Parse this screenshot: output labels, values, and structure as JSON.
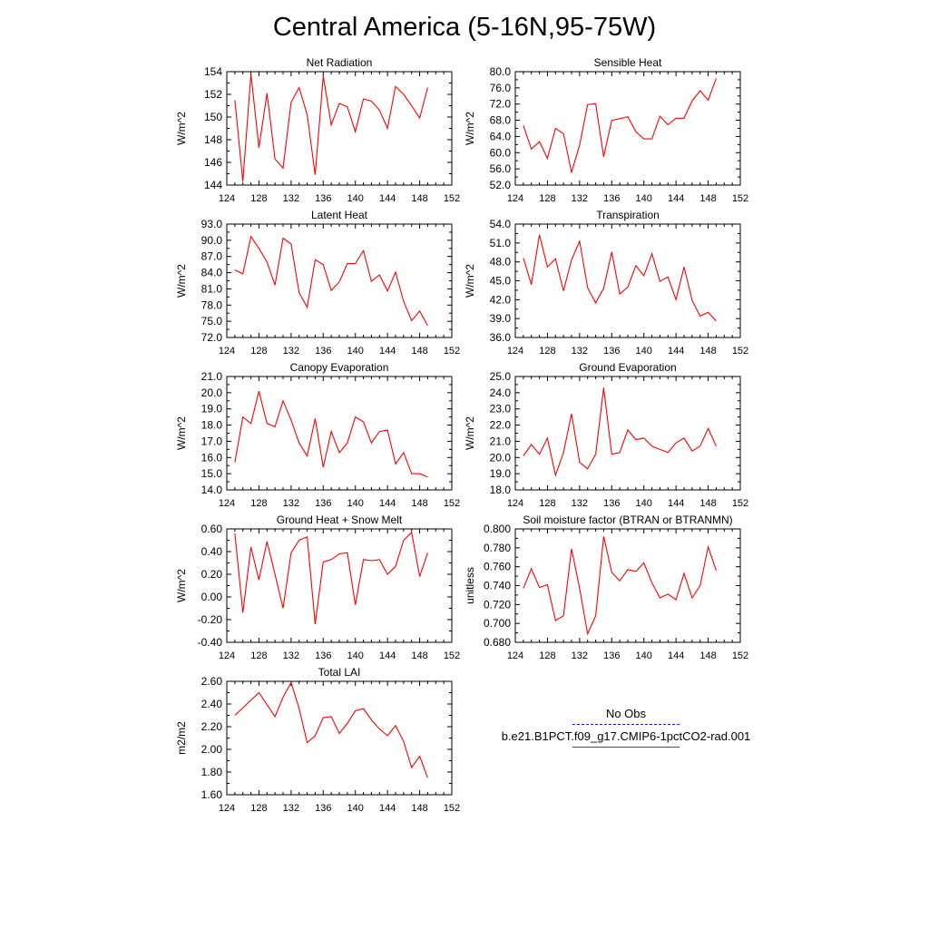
{
  "title": "Central America (5-16N,95-75W)",
  "legend": {
    "obs_label": "No Obs",
    "model_label": "b.e21.B1PCT.f09_g17.CMIP6-1pctCO2-rad.001",
    "obs_color": "#1a1acc",
    "model_color": "#ff0000"
  },
  "x_axis": {
    "range": [
      124,
      152
    ],
    "ticks": [
      "124",
      "128",
      "132",
      "136",
      "140",
      "144",
      "148",
      "152"
    ]
  },
  "chart_data": [
    {
      "type": "line",
      "title": "Net Radiation",
      "ylabel": "W/m^2",
      "ylim": [
        144,
        154
      ],
      "yticks": [
        "144",
        "146",
        "148",
        "150",
        "152",
        "154"
      ],
      "x": [
        125,
        126,
        127,
        128,
        129,
        130,
        131,
        132,
        133,
        134,
        135,
        136,
        137,
        138,
        139,
        140,
        141,
        142,
        143,
        144,
        145,
        146,
        147,
        148,
        149
      ],
      "series": [
        {
          "values": [
            151.5,
            144.3,
            153.8,
            147.3,
            152.1,
            146.3,
            145.5,
            151.3,
            152.6,
            150.2,
            144.9,
            153.6,
            149.3,
            151.2,
            150.9,
            148.7,
            151.6,
            151.4,
            150.6,
            149.0,
            152.7,
            152.0,
            151.0,
            149.9,
            152.6
          ]
        }
      ]
    },
    {
      "type": "line",
      "title": "Sensible Heat",
      "ylabel": "W/m^2",
      "ylim": [
        52,
        80
      ],
      "yticks": [
        "52.0",
        "56.0",
        "60.0",
        "64.0",
        "68.0",
        "72.0",
        "76.0",
        "80.0"
      ],
      "x": [
        125,
        126,
        127,
        128,
        129,
        130,
        131,
        132,
        133,
        134,
        135,
        136,
        137,
        138,
        139,
        140,
        141,
        142,
        143,
        144,
        145,
        146,
        147,
        148,
        149
      ],
      "series": [
        {
          "values": [
            66.7,
            60.9,
            62.7,
            58.6,
            66.0,
            64.7,
            55.1,
            61.9,
            71.9,
            72.1,
            59.0,
            68.0,
            68.4,
            68.9,
            65.2,
            63.4,
            63.4,
            69.0,
            66.9,
            68.5,
            68.5,
            72.8,
            75.3,
            73.0,
            78.3
          ]
        }
      ]
    },
    {
      "type": "line",
      "title": "Latent Heat",
      "ylabel": "W/m^2",
      "ylim": [
        72,
        93
      ],
      "yticks": [
        "72.0",
        "75.0",
        "78.0",
        "81.0",
        "84.0",
        "87.0",
        "90.0",
        "93.0"
      ],
      "x": [
        125,
        126,
        127,
        128,
        129,
        130,
        131,
        132,
        133,
        134,
        135,
        136,
        137,
        138,
        139,
        140,
        141,
        142,
        143,
        144,
        145,
        146,
        147,
        148,
        149
      ],
      "series": [
        {
          "values": [
            84.5,
            83.8,
            90.7,
            88.5,
            86.0,
            81.7,
            90.4,
            89.3,
            80.3,
            77.6,
            86.4,
            85.5,
            80.7,
            82.3,
            85.7,
            85.7,
            88.1,
            82.4,
            83.6,
            80.6,
            84.1,
            78.7,
            75.1,
            76.9,
            74.2
          ]
        }
      ]
    },
    {
      "type": "line",
      "title": "Transpiration",
      "ylabel": "W/m^2",
      "ylim": [
        36,
        54
      ],
      "yticks": [
        "36.0",
        "39.0",
        "42.0",
        "45.0",
        "48.0",
        "51.0",
        "54.0"
      ],
      "x": [
        125,
        126,
        127,
        128,
        129,
        130,
        131,
        132,
        133,
        134,
        135,
        136,
        137,
        138,
        139,
        140,
        141,
        142,
        143,
        144,
        145,
        146,
        147,
        148,
        149
      ],
      "series": [
        {
          "values": [
            48.6,
            44.4,
            52.3,
            47.2,
            48.5,
            43.4,
            48.3,
            51.3,
            43.9,
            41.5,
            43.8,
            49.6,
            42.9,
            44.0,
            47.4,
            45.8,
            49.3,
            44.9,
            45.6,
            42.0,
            47.2,
            41.9,
            39.4,
            40.0,
            38.6
          ]
        }
      ]
    },
    {
      "type": "line",
      "title": "Canopy Evaporation",
      "ylabel": "W/m^2",
      "ylim": [
        14,
        21
      ],
      "yticks": [
        "14.0",
        "15.0",
        "16.0",
        "17.0",
        "18.0",
        "19.0",
        "20.0",
        "21.0"
      ],
      "x": [
        125,
        126,
        127,
        128,
        129,
        130,
        131,
        132,
        133,
        134,
        135,
        136,
        137,
        138,
        139,
        140,
        141,
        142,
        143,
        144,
        145,
        146,
        147,
        148,
        149
      ],
      "series": [
        {
          "values": [
            15.7,
            18.5,
            18.1,
            20.1,
            18.1,
            17.9,
            19.5,
            18.3,
            16.9,
            16.1,
            18.4,
            15.4,
            17.6,
            16.3,
            16.9,
            18.5,
            18.2,
            16.9,
            17.6,
            17.7,
            15.6,
            16.3,
            15.0,
            15.0,
            14.8
          ]
        }
      ]
    },
    {
      "type": "line",
      "title": "Ground Evaporation",
      "ylabel": "W/m^2",
      "ylim": [
        18,
        25
      ],
      "yticks": [
        "18.0",
        "19.0",
        "20.0",
        "21.0",
        "22.0",
        "23.0",
        "24.0",
        "25.0"
      ],
      "x": [
        125,
        126,
        127,
        128,
        129,
        130,
        131,
        132,
        133,
        134,
        135,
        136,
        137,
        138,
        139,
        140,
        141,
        142,
        143,
        144,
        145,
        146,
        147,
        148,
        149
      ],
      "series": [
        {
          "values": [
            20.1,
            20.8,
            20.2,
            21.2,
            18.9,
            20.3,
            22.7,
            19.7,
            19.3,
            20.2,
            24.3,
            20.2,
            20.3,
            21.7,
            21.1,
            21.2,
            20.7,
            20.5,
            20.3,
            20.9,
            21.2,
            20.4,
            20.7,
            21.8,
            20.7
          ]
        }
      ]
    },
    {
      "type": "line",
      "title": "Ground Heat + Snow Melt",
      "ylabel": "W/m^2",
      "ylim": [
        -0.4,
        0.6
      ],
      "yticks": [
        "-0.40",
        "-0.20",
        "0.00",
        "0.20",
        "0.40",
        "0.60"
      ],
      "x": [
        125,
        126,
        127,
        128,
        129,
        130,
        131,
        132,
        133,
        134,
        135,
        136,
        137,
        138,
        139,
        140,
        141,
        142,
        143,
        144,
        145,
        146,
        147,
        148,
        149
      ],
      "series": [
        {
          "values": [
            0.56,
            -0.14,
            0.44,
            0.15,
            0.49,
            0.2,
            -0.1,
            0.39,
            0.5,
            0.53,
            -0.24,
            0.31,
            0.33,
            0.38,
            0.39,
            -0.07,
            0.33,
            0.32,
            0.33,
            0.2,
            0.27,
            0.5,
            0.57,
            0.18,
            0.39
          ]
        }
      ]
    },
    {
      "type": "line",
      "title": "Soil moisture factor (BTRAN or BTRANMN)",
      "ylabel": "unitless",
      "ylim": [
        0.68,
        0.8
      ],
      "yticks": [
        "0.680",
        "0.700",
        "0.720",
        "0.740",
        "0.760",
        "0.780",
        "0.800"
      ],
      "x": [
        125,
        126,
        127,
        128,
        129,
        130,
        131,
        132,
        133,
        134,
        135,
        136,
        137,
        138,
        139,
        140,
        141,
        142,
        143,
        144,
        145,
        146,
        147,
        148,
        149
      ],
      "series": [
        {
          "values": [
            0.737,
            0.758,
            0.738,
            0.741,
            0.703,
            0.708,
            0.779,
            0.737,
            0.689,
            0.708,
            0.792,
            0.754,
            0.745,
            0.757,
            0.755,
            0.764,
            0.743,
            0.727,
            0.731,
            0.725,
            0.753,
            0.727,
            0.74,
            0.781,
            0.756
          ]
        }
      ]
    },
    {
      "type": "line",
      "title": "Total LAI",
      "ylabel": "m2/m2",
      "ylim": [
        1.6,
        2.6
      ],
      "yticks": [
        "1.60",
        "1.80",
        "2.00",
        "2.20",
        "2.40",
        "2.60"
      ],
      "x": [
        125,
        128,
        130,
        131,
        132,
        133,
        134,
        135,
        136,
        137,
        138,
        139,
        140,
        141,
        142,
        143,
        144,
        145,
        146,
        147,
        148,
        149
      ],
      "series": [
        {
          "values": [
            2.3,
            2.5,
            2.29,
            2.46,
            2.59,
            2.36,
            2.06,
            2.12,
            2.28,
            2.29,
            2.14,
            2.23,
            2.34,
            2.36,
            2.26,
            2.18,
            2.12,
            2.21,
            2.07,
            1.84,
            1.94,
            1.75
          ]
        }
      ]
    }
  ]
}
